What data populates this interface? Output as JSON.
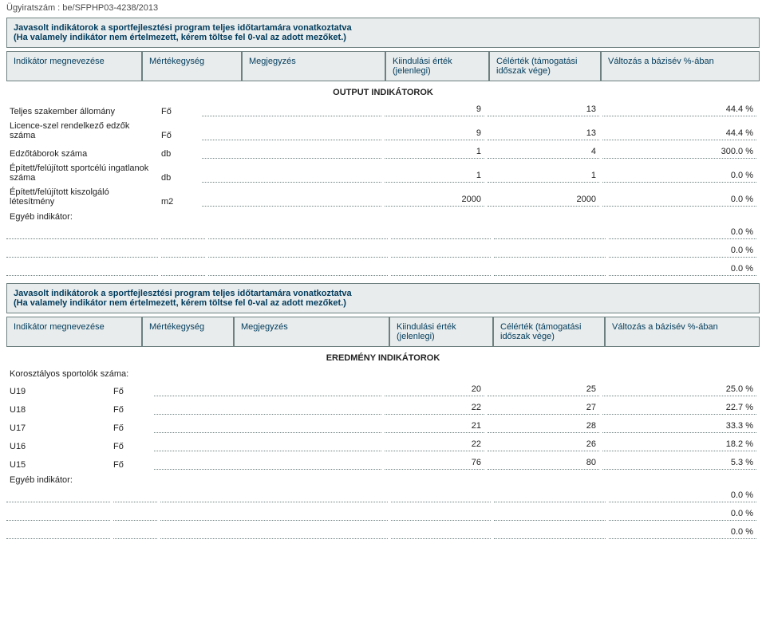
{
  "caseNumber": "Ügyiratszám : be/SFPHP03-4238/2013",
  "section1": {
    "titleLine1": "Javasolt indikátorok a sportfejlesztési program teljes időtartamára vonatkoztatva",
    "titleLine2": "(Ha valamely indikátor nem értelmezett, kérem töltse fel 0-val az adott mezőket.)",
    "headers": {
      "name": "Indikátor megnevezése",
      "unit": "Mértékegység",
      "note": "Megjegyzés",
      "start": "Kiindulási érték (jelenlegi)",
      "target": "Célérték (támogatási időszak vége)",
      "change": "Változás a bázisév %-ában"
    },
    "groupTitle": "OUTPUT INDIKÁTOROK",
    "rows": [
      {
        "name": "Teljes szakember állomány",
        "unit": "Fő",
        "note": "",
        "start": "9",
        "target": "13",
        "change": "44.4 %"
      },
      {
        "name": "Licence-szel rendelkező edzők száma",
        "unit": "Fő",
        "note": "",
        "start": "9",
        "target": "13",
        "change": "44.4 %"
      },
      {
        "name": "Edzőtáborok száma",
        "unit": "db",
        "note": "",
        "start": "1",
        "target": "4",
        "change": "300.0 %"
      },
      {
        "name": "Épített/felújított sportcélú ingatlanok száma",
        "unit": "db",
        "note": "",
        "start": "1",
        "target": "1",
        "change": "0.0 %"
      },
      {
        "name": "Épített/felújított kiszolgáló létesítmény",
        "unit": "m2",
        "note": "",
        "start": "2000",
        "target": "2000",
        "change": "0.0 %"
      }
    ],
    "otherLabel": "Egyéb indikátor:",
    "otherRows": [
      {
        "name": "",
        "unit": "",
        "note": "",
        "start": "",
        "target": "",
        "change": "0.0 %"
      },
      {
        "name": "",
        "unit": "",
        "note": "",
        "start": "",
        "target": "",
        "change": "0.0 %"
      },
      {
        "name": "",
        "unit": "",
        "note": "",
        "start": "",
        "target": "",
        "change": "0.0 %"
      }
    ]
  },
  "section2": {
    "titleLine1": "Javasolt indikátorok a sportfejlesztési program teljes időtartamára vonatkoztatva",
    "titleLine2": "(Ha valamely indikátor nem értelmezett, kérem töltse fel 0-val az adott mezőket.)",
    "headers": {
      "name": "Indikátor megnevezése",
      "unit": "Mértékegység",
      "note": "Megjegyzés",
      "start": "Kiindulási érték (jelenlegi)",
      "target": "Célérték (támogatási időszak vége)",
      "change": "Változás a bázisév %-ában"
    },
    "groupTitle": "EREDMÉNY INDIKÁTOROK",
    "subLabel": "Korosztályos sportolók száma:",
    "rows": [
      {
        "name": "U19",
        "unit": "Fő",
        "note": "",
        "start": "20",
        "target": "25",
        "change": "25.0 %"
      },
      {
        "name": "U18",
        "unit": "Fő",
        "note": "",
        "start": "22",
        "target": "27",
        "change": "22.7 %"
      },
      {
        "name": "U17",
        "unit": "Fő",
        "note": "",
        "start": "21",
        "target": "28",
        "change": "33.3 %"
      },
      {
        "name": "U16",
        "unit": "Fő",
        "note": "",
        "start": "22",
        "target": "26",
        "change": "18.2 %"
      },
      {
        "name": "U15",
        "unit": "Fő",
        "note": "",
        "start": "76",
        "target": "80",
        "change": "5.3 %"
      }
    ],
    "otherLabel": "Egyéb indikátor:",
    "otherRows": [
      {
        "name": "",
        "unit": "",
        "note": "",
        "start": "",
        "target": "",
        "change": "0.0 %"
      },
      {
        "name": "",
        "unit": "",
        "note": "",
        "start": "",
        "target": "",
        "change": "0.0 %"
      },
      {
        "name": "",
        "unit": "",
        "note": "",
        "start": "",
        "target": "",
        "change": "0.0 %"
      }
    ]
  },
  "styling": {
    "borderColor": "#6e8080",
    "headerBg": "#e8ecec",
    "headerText": "#003b5c",
    "dottedBorder": "#6e8080",
    "bodyText": "#222222",
    "background": "#ffffff",
    "fontFamily": "Verdana, Arial, sans-serif",
    "baseFontSize": 11
  }
}
